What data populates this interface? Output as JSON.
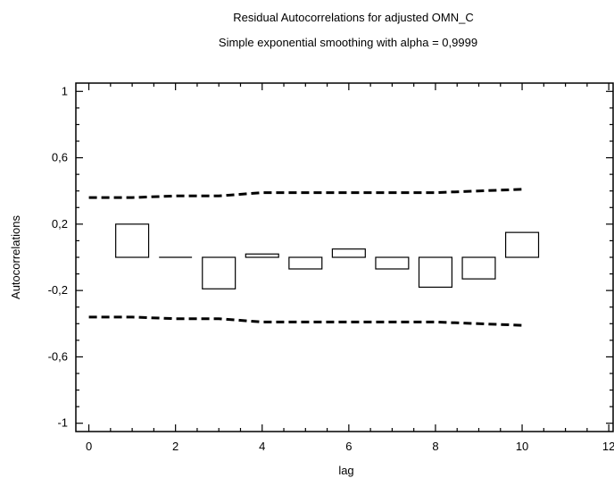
{
  "chart_data": {
    "type": "bar",
    "title": "Residual Autocorrelations for adjusted OMN_C",
    "subtitle": "Simple exponential smoothing with alpha = 0,9999",
    "xlabel": "lag",
    "ylabel": "Autocorrelations",
    "xlim": [
      -0.3,
      12.1
    ],
    "ylim": [
      -1.05,
      1.05
    ],
    "x_ticks": [
      0,
      2,
      4,
      6,
      8,
      10,
      12
    ],
    "y_ticks": [
      1,
      0.6,
      0.2,
      -0.2,
      -0.6,
      -1
    ],
    "y_tick_labels": [
      "1",
      "0,6",
      "0,2",
      "-0,2",
      "-0,6",
      "-1"
    ],
    "x_minor_step": 0.5,
    "y_minor_step": 0.1,
    "series": [
      {
        "lags": [
          1,
          2,
          3,
          4,
          5,
          6,
          7,
          8,
          9,
          10
        ],
        "values": [
          0.2,
          0.0,
          -0.19,
          0.02,
          -0.07,
          0.05,
          -0.07,
          -0.18,
          -0.13,
          0.15
        ]
      }
    ],
    "limits": {
      "x": [
        0,
        1,
        2,
        3,
        4,
        5,
        6,
        7,
        8,
        9,
        10
      ],
      "upper": [
        0.36,
        0.36,
        0.37,
        0.37,
        0.39,
        0.39,
        0.39,
        0.39,
        0.39,
        0.4,
        0.41
      ],
      "lower": [
        -0.36,
        -0.36,
        -0.37,
        -0.37,
        -0.39,
        -0.39,
        -0.39,
        -0.39,
        -0.39,
        -0.4,
        -0.41
      ]
    },
    "grid": false,
    "legend": "none"
  }
}
